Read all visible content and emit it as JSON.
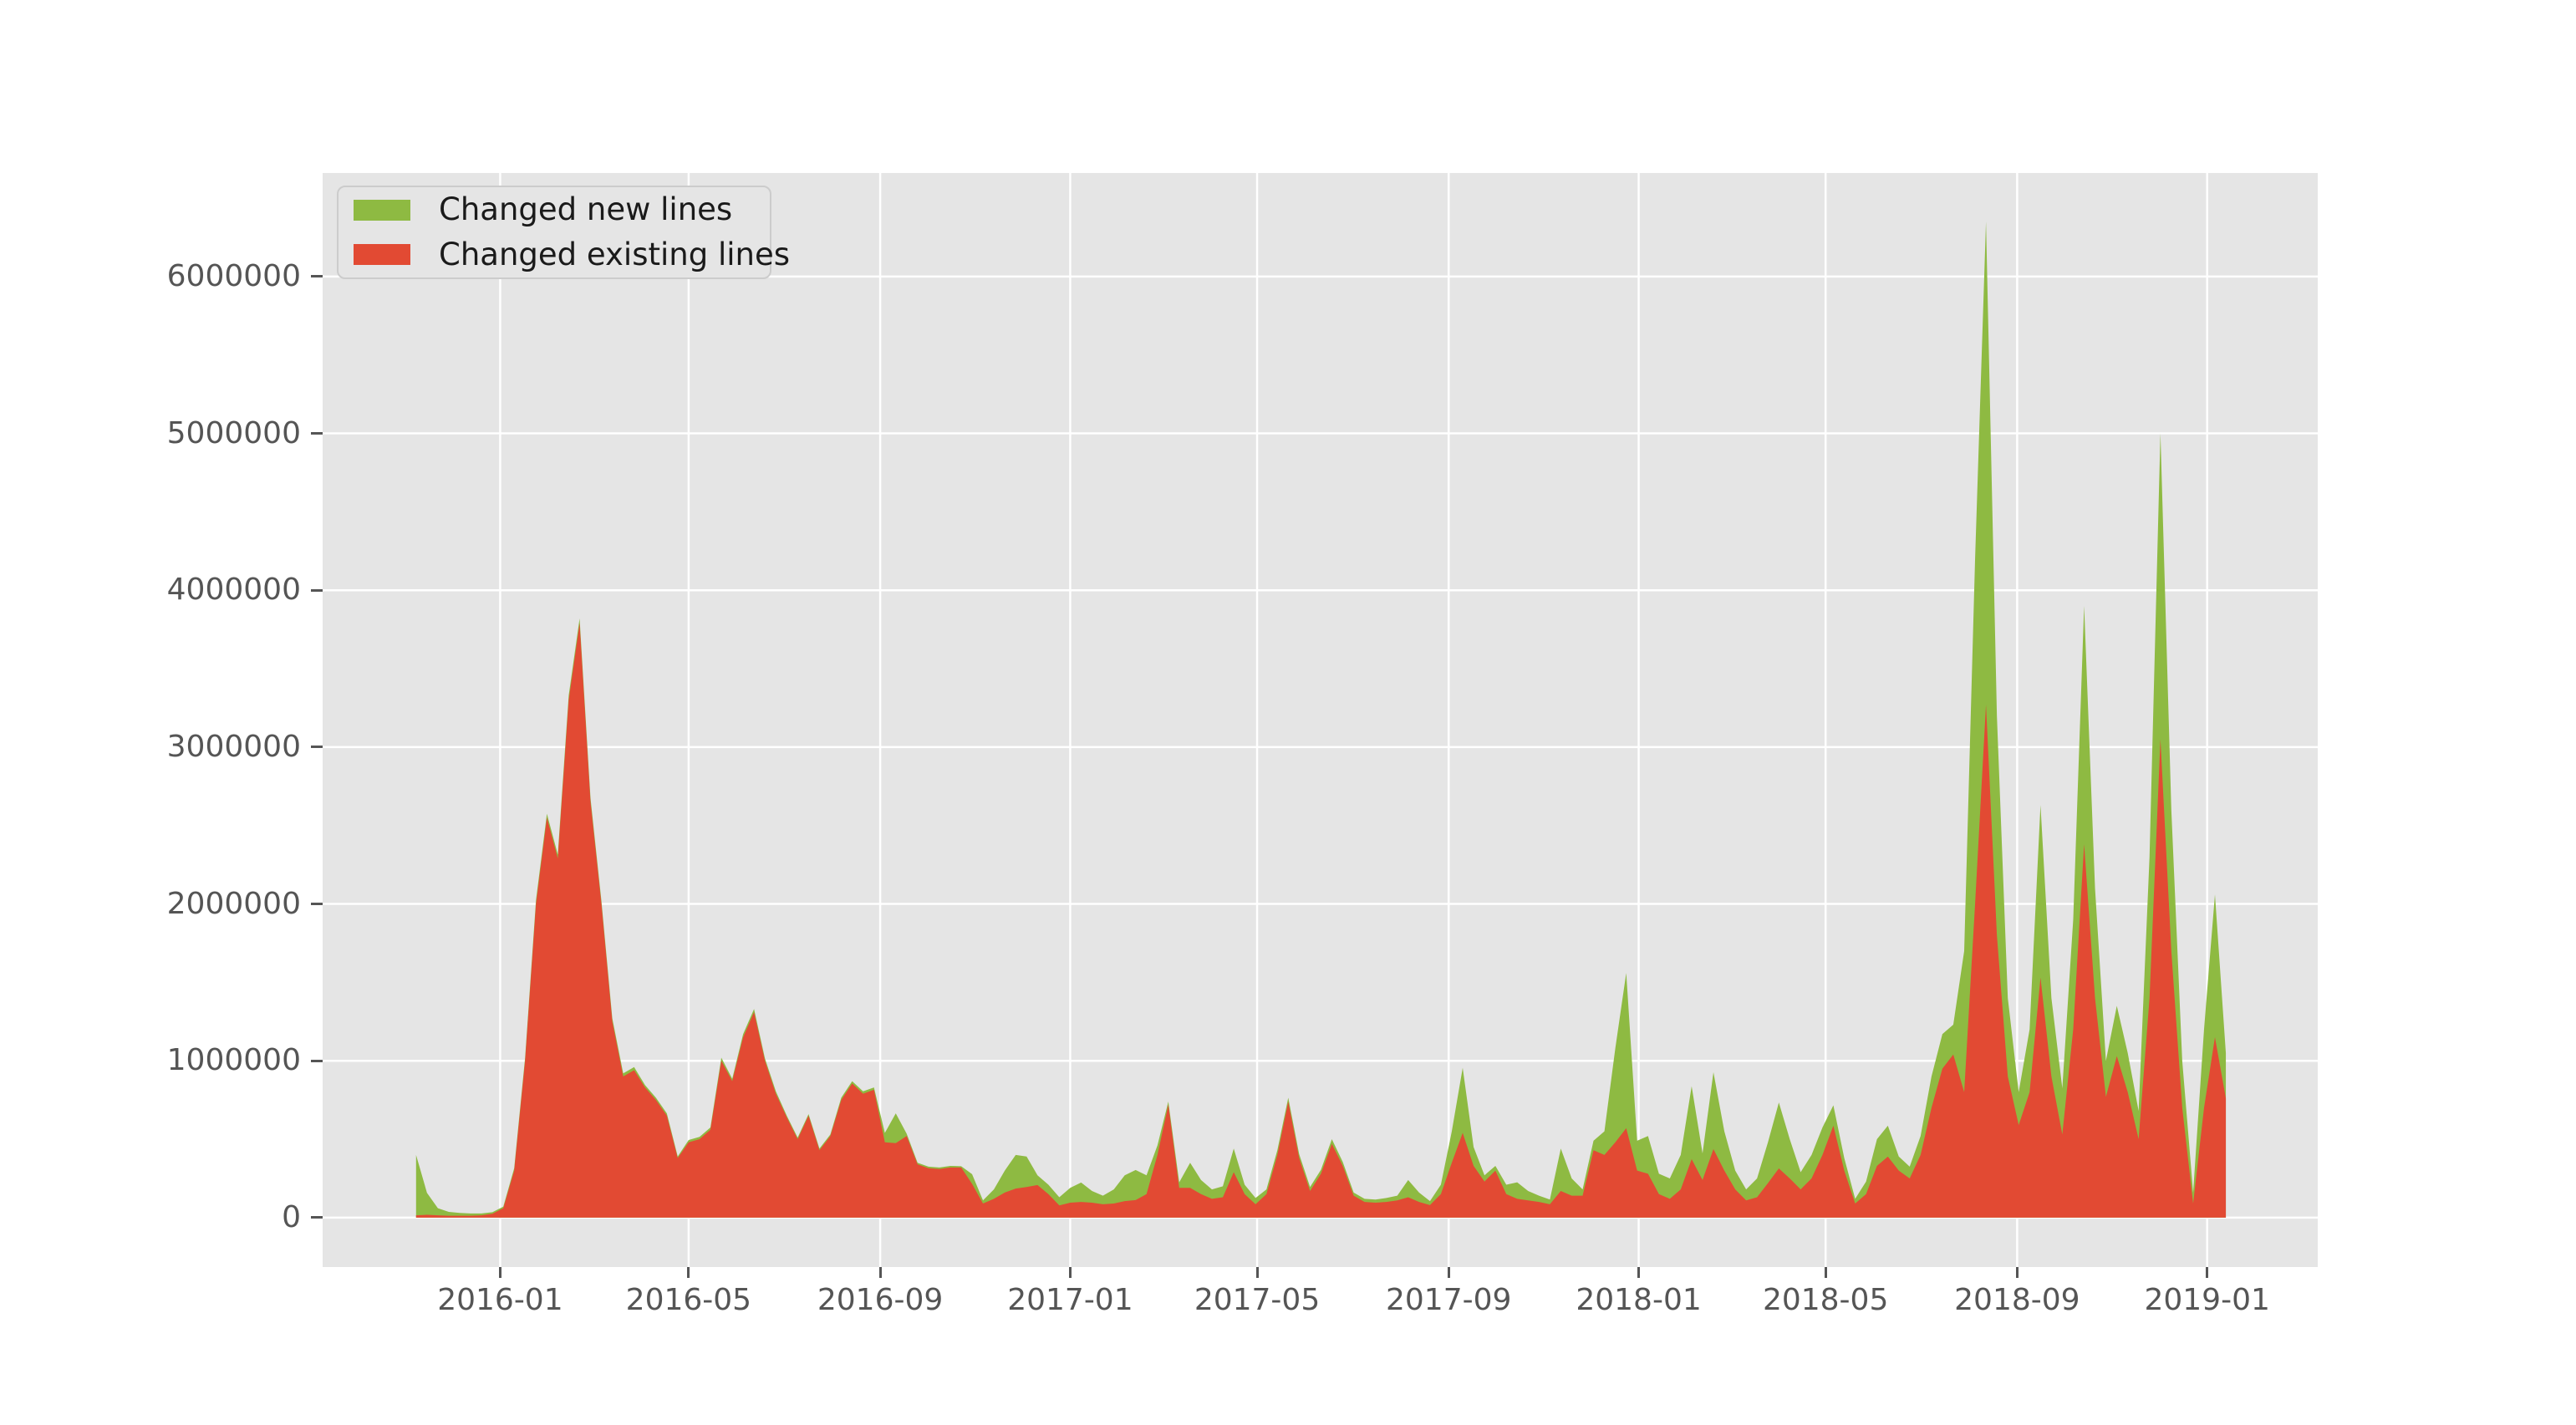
{
  "figure": {
    "background_color": "#ffffff",
    "plot_background_color": "#e5e5e5",
    "grid_color": "#ffffff",
    "tick_color": "#555555",
    "tick_label_color": "#555555",
    "legend_background_color": "#e5e5e5",
    "legend_border_color": "#cccccc",
    "legend_text_color": "#1a1a1a"
  },
  "legend": {
    "items": [
      {
        "label": "Changed new lines",
        "color": "#8eba42"
      },
      {
        "label": "Changed existing lines",
        "color": "#e24a33"
      }
    ]
  },
  "chart_data": {
    "type": "area",
    "stacked": true,
    "title": "",
    "xlabel": "",
    "ylabel": "",
    "grid": true,
    "legend_position": "upper left",
    "xlim": [
      "2015-09-09",
      "2019-03-13"
    ],
    "ylim": [
      -315000,
      6660000
    ],
    "y_ticks": [
      {
        "label": "0",
        "value": 0
      },
      {
        "label": "1000000",
        "value": 1000000
      },
      {
        "label": "2000000",
        "value": 2000000
      },
      {
        "label": "3000000",
        "value": 3000000
      },
      {
        "label": "4000000",
        "value": 4000000
      },
      {
        "label": "5000000",
        "value": 5000000
      },
      {
        "label": "6000000",
        "value": 6000000
      }
    ],
    "x_ticks": [
      {
        "label": "2016-01",
        "date": "2016-01-01"
      },
      {
        "label": "2016-05",
        "date": "2016-05-01"
      },
      {
        "label": "2016-09",
        "date": "2016-09-01"
      },
      {
        "label": "2017-01",
        "date": "2017-01-01"
      },
      {
        "label": "2017-05",
        "date": "2017-05-01"
      },
      {
        "label": "2017-09",
        "date": "2017-09-01"
      },
      {
        "label": "2018-01",
        "date": "2018-01-01"
      },
      {
        "label": "2018-05",
        "date": "2018-05-01"
      },
      {
        "label": "2018-09",
        "date": "2018-09-01"
      },
      {
        "label": "2019-01",
        "date": "2019-01-01"
      }
    ],
    "stack_order_bottom_to_top": [
      "Changed existing lines",
      "Changed new lines"
    ],
    "x": [
      "2015-11-08",
      "2015-11-15",
      "2015-11-22",
      "2015-11-29",
      "2015-12-06",
      "2015-12-13",
      "2015-12-20",
      "2015-12-27",
      "2016-01-03",
      "2016-01-10",
      "2016-01-17",
      "2016-01-24",
      "2016-01-31",
      "2016-02-07",
      "2016-02-14",
      "2016-02-21",
      "2016-02-28",
      "2016-03-06",
      "2016-03-13",
      "2016-03-20",
      "2016-03-27",
      "2016-04-03",
      "2016-04-10",
      "2016-04-17",
      "2016-04-24",
      "2016-05-01",
      "2016-05-08",
      "2016-05-15",
      "2016-05-22",
      "2016-05-29",
      "2016-06-05",
      "2016-06-12",
      "2016-06-19",
      "2016-06-26",
      "2016-07-03",
      "2016-07-10",
      "2016-07-17",
      "2016-07-24",
      "2016-07-31",
      "2016-08-07",
      "2016-08-14",
      "2016-08-21",
      "2016-08-28",
      "2016-09-04",
      "2016-09-11",
      "2016-09-18",
      "2016-09-25",
      "2016-10-02",
      "2016-10-09",
      "2016-10-16",
      "2016-10-23",
      "2016-10-30",
      "2016-11-06",
      "2016-11-13",
      "2016-11-20",
      "2016-11-27",
      "2016-12-04",
      "2016-12-11",
      "2016-12-18",
      "2016-12-25",
      "2017-01-01",
      "2017-01-08",
      "2017-01-15",
      "2017-01-22",
      "2017-01-29",
      "2017-02-05",
      "2017-02-12",
      "2017-02-19",
      "2017-02-26",
      "2017-03-05",
      "2017-03-12",
      "2017-03-19",
      "2017-03-26",
      "2017-04-02",
      "2017-04-09",
      "2017-04-16",
      "2017-04-23",
      "2017-04-30",
      "2017-05-07",
      "2017-05-14",
      "2017-05-21",
      "2017-05-28",
      "2017-06-04",
      "2017-06-11",
      "2017-06-18",
      "2017-06-25",
      "2017-07-02",
      "2017-07-09",
      "2017-07-16",
      "2017-07-23",
      "2017-07-30",
      "2017-08-06",
      "2017-08-13",
      "2017-08-20",
      "2017-08-27",
      "2017-09-03",
      "2017-09-10",
      "2017-09-17",
      "2017-09-24",
      "2017-10-01",
      "2017-10-08",
      "2017-10-15",
      "2017-10-22",
      "2017-10-29",
      "2017-11-05",
      "2017-11-12",
      "2017-11-19",
      "2017-11-26",
      "2017-12-03",
      "2017-12-10",
      "2017-12-17",
      "2017-12-24",
      "2017-12-31",
      "2018-01-07",
      "2018-01-14",
      "2018-01-21",
      "2018-01-28",
      "2018-02-04",
      "2018-02-11",
      "2018-02-18",
      "2018-02-25",
      "2018-03-04",
      "2018-03-11",
      "2018-03-18",
      "2018-03-25",
      "2018-04-01",
      "2018-04-08",
      "2018-04-15",
      "2018-04-22",
      "2018-04-29",
      "2018-05-06",
      "2018-05-13",
      "2018-05-20",
      "2018-05-27",
      "2018-06-03",
      "2018-06-10",
      "2018-06-17",
      "2018-06-24",
      "2018-07-01",
      "2018-07-08",
      "2018-07-15",
      "2018-07-22",
      "2018-07-29",
      "2018-08-05",
      "2018-08-12",
      "2018-08-19",
      "2018-08-26",
      "2018-09-02",
      "2018-09-09",
      "2018-09-16",
      "2018-09-23",
      "2018-09-30",
      "2018-10-07",
      "2018-10-14",
      "2018-10-21",
      "2018-10-28",
      "2018-11-04",
      "2018-11-11",
      "2018-11-18",
      "2018-11-25",
      "2018-12-02",
      "2018-12-09",
      "2018-12-16",
      "2018-12-23",
      "2018-12-30",
      "2019-01-06",
      "2019-01-13"
    ],
    "series": [
      {
        "name": "Changed new lines",
        "color": "#8eba42",
        "values": [
          385000,
          140000,
          45000,
          25000,
          18000,
          15000,
          12000,
          10000,
          10000,
          15000,
          20000,
          25000,
          25000,
          25000,
          30000,
          30000,
          25000,
          20000,
          20000,
          20000,
          20000,
          15000,
          15000,
          15000,
          10000,
          15000,
          15000,
          15000,
          20000,
          15000,
          20000,
          20000,
          15000,
          15000,
          10000,
          10000,
          10000,
          10000,
          10000,
          15000,
          15000,
          15000,
          15000,
          60000,
          190000,
          15000,
          10000,
          10000,
          10000,
          10000,
          8000,
          62000,
          20000,
          60000,
          140000,
          215000,
          195000,
          62000,
          60000,
          52000,
          95000,
          124000,
          75000,
          55000,
          90000,
          165000,
          192000,
          120000,
          60000,
          20000,
          35000,
          160000,
          90000,
          60000,
          70000,
          150000,
          60000,
          40000,
          30000,
          30000,
          25000,
          25000,
          25000,
          25000,
          30000,
          25000,
          20000,
          20000,
          20000,
          25000,
          30000,
          110000,
          60000,
          25000,
          60000,
          200000,
          415000,
          120000,
          40000,
          30000,
          60000,
          105000,
          60000,
          40000,
          30000,
          270000,
          110000,
          40000,
          60000,
          150000,
          600000,
          990000,
          190000,
          240000,
          130000,
          130000,
          220000,
          465000,
          170000,
          490000,
          250000,
          120000,
          70000,
          120000,
          260000,
          420000,
          250000,
          110000,
          150000,
          175000,
          130000,
          80000,
          30000,
          80000,
          170000,
          197000,
          90000,
          75000,
          120000,
          200000,
          220000,
          190000,
          900000,
          2200000,
          3080000,
          1400000,
          500000,
          210000,
          400000,
          1100000,
          500000,
          295000,
          700000,
          1520000,
          700000,
          230000,
          320000,
          250000,
          180000,
          900000,
          1950000,
          900000,
          300000,
          70000,
          500000,
          910000,
          290000
        ]
      },
      {
        "name": "Changed existing lines",
        "color": "#e24a33",
        "values": [
          15000,
          18000,
          15000,
          12000,
          12000,
          12000,
          15000,
          25000,
          60000,
          300000,
          1000000,
          2000000,
          2550000,
          2290000,
          3300000,
          3790000,
          2650000,
          2000000,
          1250000,
          900000,
          940000,
          830000,
          750000,
          650000,
          380000,
          480000,
          500000,
          560000,
          1000000,
          870000,
          1150000,
          1310000,
          1000000,
          790000,
          640000,
          500000,
          650000,
          430000,
          520000,
          750000,
          855000,
          790000,
          815000,
          480000,
          475000,
          520000,
          340000,
          315000,
          310000,
          320000,
          320000,
          215000,
          90000,
          120000,
          160000,
          185000,
          195000,
          208000,
          150000,
          78000,
          95000,
          100000,
          95000,
          85000,
          90000,
          105000,
          112000,
          150000,
          400000,
          720000,
          190000,
          190000,
          150000,
          120000,
          130000,
          290000,
          150000,
          85000,
          150000,
          400000,
          740000,
          380000,
          170000,
          280000,
          470000,
          330000,
          140000,
          100000,
          95000,
          100000,
          110000,
          130000,
          100000,
          80000,
          150000,
          350000,
          540000,
          330000,
          230000,
          300000,
          150000,
          120000,
          110000,
          100000,
          85000,
          170000,
          140000,
          140000,
          430000,
          400000,
          480000,
          570000,
          300000,
          280000,
          150000,
          120000,
          180000,
          373000,
          240000,
          437000,
          300000,
          180000,
          110000,
          130000,
          220000,
          314000,
          250000,
          180000,
          250000,
          400000,
          586000,
          300000,
          90000,
          150000,
          330000,
          389000,
          300000,
          250000,
          400000,
          700000,
          950000,
          1040000,
          800000,
          2000000,
          3270000,
          1800000,
          900000,
          590000,
          800000,
          1530000,
          900000,
          530000,
          1200000,
          2380000,
          1400000,
          770000,
          1030000,
          800000,
          500000,
          1400000,
          3050000,
          1700000,
          700000,
          90000,
          700000,
          1150000,
          760000
        ]
      }
    ]
  }
}
